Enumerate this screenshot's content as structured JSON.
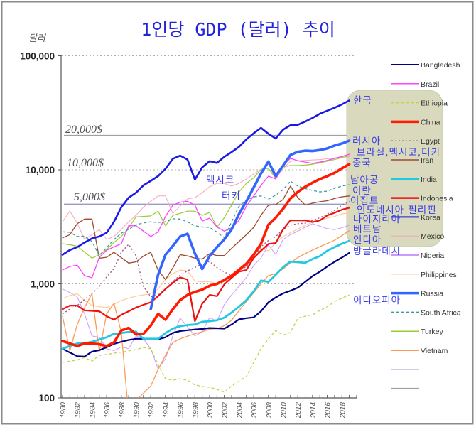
{
  "chart_data": {
    "type": "line",
    "title": "1인당 GDP (달러) 추이",
    "ylabel": "달러",
    "xlabel": "",
    "yscale": "log",
    "ylim": [
      100,
      100000
    ],
    "xlim": [
      1980,
      2019
    ],
    "grid": "dotted horizontal lines at 1,000 / 10,000 / 100,000",
    "legend_position": "right",
    "y_ticks": [
      {
        "value": 100000,
        "label": "100,000"
      },
      {
        "value": 10000,
        "label": "10,000"
      },
      {
        "value": 1000,
        "label": "1,000"
      },
      {
        "value": 100,
        "label": "100"
      }
    ],
    "x_tick_labels": [
      "1980",
      "1982",
      "1984",
      "1986",
      "1988",
      "1990",
      "1992",
      "1994",
      "1996",
      "1998",
      "2000",
      "2002",
      "2004",
      "2006",
      "2008",
      "2010",
      "2012",
      "2014",
      "2016",
      "2018"
    ],
    "x": [
      1980,
      1981,
      1982,
      1983,
      1984,
      1985,
      1986,
      1987,
      1988,
      1989,
      1990,
      1991,
      1992,
      1993,
      1994,
      1995,
      1996,
      1997,
      1998,
      1999,
      2000,
      2001,
      2002,
      2003,
      2004,
      2005,
      2006,
      2007,
      2008,
      2009,
      2010,
      2011,
      2012,
      2013,
      2014,
      2015,
      2016,
      2017,
      2018,
      2019
    ],
    "series": [
      {
        "name": "Bangladesh",
        "color": "#000080",
        "style": "solid",
        "values": [
          270,
          250,
          232,
          230,
          255,
          262,
          278,
          298,
          310,
          322,
          330,
          330,
          328,
          326,
          340,
          372,
          385,
          392,
          398,
          402,
          410,
          408,
          405,
          440,
          488,
          500,
          508,
          575,
          690,
          760,
          825,
          870,
          925,
          1040,
          1170,
          1280,
          1420,
          1560,
          1700,
          1870
        ]
      },
      {
        "name": "Brazil",
        "color": "#ff44ff",
        "style": "solid",
        "values": [
          1320,
          1420,
          1460,
          1180,
          1130,
          1710,
          1970,
          2110,
          2250,
          3230,
          3230,
          2900,
          2600,
          2850,
          3900,
          4900,
          5200,
          5300,
          4900,
          3550,
          3770,
          3150,
          2900,
          3100,
          3600,
          4800,
          5900,
          7300,
          8800,
          8300,
          11000,
          12600,
          12000,
          11700,
          11400,
          11700,
          12100,
          12600,
          13100,
          13700
        ]
      },
      {
        "name": "Ethiopia",
        "color": "#bbd64a",
        "style": "dashed",
        "values": [
          205,
          210,
          215,
          226,
          210,
          236,
          240,
          247,
          252,
          258,
          265,
          277,
          270,
          196,
          147,
          143,
          147,
          143,
          130,
          126,
          124,
          119,
          112,
          127,
          140,
          154,
          205,
          270,
          330,
          390,
          355,
          375,
          500,
          520,
          535,
          585,
          630,
          700,
          750,
          800
        ]
      },
      {
        "name": "China",
        "color": "#ff1a00",
        "style": "solid",
        "values": [
          315,
          300,
          285,
          300,
          300,
          295,
          285,
          306,
          390,
          410,
          360,
          365,
          430,
          545,
          485,
          600,
          720,
          800,
          850,
          890,
          960,
          1000,
          1080,
          1180,
          1330,
          1500,
          1800,
          2250,
          3300,
          3800,
          4550,
          5600,
          6400,
          7100,
          7700,
          8300,
          8800,
          9400,
          10300,
          11200
        ]
      },
      {
        "name": "Egypt",
        "color": "#a05a8c",
        "style": "dotted",
        "values": [
          545,
          600,
          645,
          730,
          820,
          950,
          1150,
          1360,
          1900,
          2220,
          1760,
          950,
          770,
          800,
          900,
          1050,
          1190,
          1300,
          1390,
          1500,
          1570,
          1390,
          1270,
          1190,
          1300,
          1420,
          1690,
          2120,
          2400,
          2600,
          3000,
          3270,
          3370,
          3400,
          3600,
          3800,
          4100,
          4400,
          4900,
          5300
        ]
      },
      {
        "name": "Iran",
        "color": "#9c4a30",
        "style": "solid",
        "values": [
          2530,
          2700,
          3370,
          3700,
          3700,
          1680,
          1710,
          1890,
          1700,
          1520,
          1560,
          1750,
          1890,
          1320,
          1090,
          1380,
          1800,
          1760,
          1680,
          1650,
          1840,
          1770,
          1770,
          2050,
          2350,
          2700,
          3130,
          4000,
          4900,
          4950,
          5500,
          7200,
          5700,
          4900,
          5100,
          5250,
          5360,
          5600,
          5800,
          5900
        ]
      },
      {
        "name": "India",
        "color": "#22c8e0",
        "style": "solid",
        "values": [
          270,
          285,
          300,
          302,
          310,
          325,
          340,
          365,
          370,
          378,
          380,
          330,
          330,
          330,
          370,
          405,
          425,
          435,
          440,
          465,
          470,
          480,
          505,
          560,
          630,
          720,
          860,
          1070,
          1040,
          1200,
          1400,
          1570,
          1550,
          1530,
          1650,
          1750,
          1950,
          2100,
          2250,
          2380
        ]
      },
      {
        "name": "Indonesia",
        "color": "#ee1111",
        "style": "solid",
        "values": [
          600,
          645,
          645,
          585,
          580,
          575,
          520,
          485,
          535,
          575,
          620,
          655,
          690,
          780,
          900,
          1020,
          1140,
          1090,
          470,
          670,
          800,
          780,
          990,
          1130,
          1280,
          1320,
          1690,
          1950,
          2240,
          2280,
          3000,
          3610,
          3600,
          3610,
          3480,
          3600,
          3980,
          4200,
          4470,
          4650
        ]
      },
      {
        "name": "Korea",
        "color": "#1a1ae6",
        "style": "solid",
        "values": [
          1800,
          1980,
          2100,
          2300,
          2500,
          2600,
          2800,
          3500,
          4700,
          5700,
          6300,
          7300,
          8000,
          8800,
          10200,
          12500,
          13300,
          12300,
          8200,
          10500,
          11900,
          11500,
          13000,
          14300,
          15900,
          18500,
          20900,
          23300,
          20700,
          18800,
          22500,
          24600,
          24800,
          26500,
          28500,
          31000,
          33000,
          35000,
          37500,
          40500
        ]
      },
      {
        "name": "Mexico",
        "color": "#f6a6bc",
        "style": "solid",
        "values": [
          3500,
          4360,
          3400,
          2450,
          2700,
          2990,
          2450,
          2600,
          3000,
          3500,
          4000,
          4700,
          5300,
          5900,
          5900,
          4140,
          4800,
          5550,
          5700,
          6300,
          7100,
          7600,
          7600,
          7200,
          7600,
          8300,
          9200,
          10100,
          10300,
          8300,
          10200,
          11900,
          12000,
          12100,
          12200,
          12300,
          12500,
          12700,
          12900,
          13000
        ]
      },
      {
        "name": "Nigeria",
        "color": "#cc99ff",
        "style": "solid",
        "values": [
          900,
          840,
          770,
          545,
          350,
          340,
          270,
          260,
          280,
          270,
          350,
          330,
          270,
          180,
          220,
          350,
          500,
          420,
          350,
          380,
          505,
          470,
          660,
          800,
          950,
          1140,
          1450,
          1690,
          2190,
          1810,
          2450,
          2700,
          2900,
          3130,
          3370,
          3200,
          3050,
          2990,
          3100,
          3270
        ]
      },
      {
        "name": "Philippines",
        "color": "#ffcc99",
        "style": "solid",
        "values": [
          745,
          790,
          820,
          715,
          645,
          630,
          620,
          660,
          715,
          750,
          780,
          800,
          820,
          900,
          1090,
          1230,
          1320,
          1300,
          1060,
          1040,
          1050,
          990,
          1050,
          1180,
          1300,
          1420,
          1650,
          2040,
          1950,
          2300,
          2600,
          2800,
          3030,
          3250,
          3480,
          3600,
          3770,
          3900,
          4100,
          4200
        ]
      },
      {
        "name": "Russia",
        "color": "#3366ff",
        "style": "solid",
        "values": [
          null,
          null,
          null,
          null,
          null,
          null,
          null,
          null,
          null,
          null,
          null,
          null,
          600,
          1200,
          1800,
          2150,
          2600,
          2750,
          1850,
          1350,
          1750,
          2100,
          2450,
          3000,
          4100,
          5300,
          7000,
          9300,
          11800,
          8800,
          10900,
          13500,
          14400,
          14700,
          14600,
          14900,
          15400,
          16300,
          17000,
          18000
        ]
      },
      {
        "name": "South Africa",
        "color": "#3a9c9c",
        "style": "dashed",
        "values": [
          2860,
          2830,
          2600,
          2620,
          2350,
          1770,
          2080,
          2450,
          2780,
          3000,
          3300,
          3420,
          3500,
          3450,
          3500,
          3720,
          3700,
          3500,
          3230,
          3150,
          3130,
          2840,
          2530,
          3500,
          4800,
          5400,
          5800,
          5900,
          5530,
          6000,
          6700,
          7950,
          7200,
          6850,
          6600,
          6400,
          6500,
          6900,
          7200,
          7400
        ]
      },
      {
        "name": "Turkey",
        "color": "#99cc33",
        "style": "solid",
        "values": [
          2250,
          2200,
          2140,
          1900,
          1680,
          1800,
          2000,
          2300,
          2600,
          3100,
          3870,
          3900,
          3940,
          4340,
          3230,
          3980,
          4150,
          4340,
          4340,
          3980,
          4220,
          3150,
          3800,
          4900,
          6400,
          7600,
          8500,
          10100,
          10300,
          8550,
          10600,
          10900,
          10900,
          11000,
          11200,
          11500,
          11900,
          12300,
          12800,
          13300
        ]
      },
      {
        "name": "Vietnam",
        "color": "#ff9955",
        "style": "solid",
        "values": [
          520,
          260,
          440,
          620,
          820,
          255,
          545,
          675,
          375,
          70,
          95,
          110,
          127,
          177,
          236,
          306,
          330,
          348,
          365,
          380,
          400,
          405,
          430,
          480,
          580,
          700,
          835,
          1000,
          1180,
          1230,
          1350,
          1530,
          1700,
          1840,
          1980,
          2120,
          2260,
          2410,
          2650,
          2920
        ]
      }
    ],
    "legend": [
      {
        "label": "Bangladesh",
        "color": "#000080",
        "style": "solid"
      },
      {
        "label": "Brazil",
        "color": "#ff44ff",
        "style": "solid"
      },
      {
        "label": "Ethiopia",
        "color": "#bbd64a",
        "style": "dashed"
      },
      {
        "label": "China",
        "color": "#ff1a00",
        "style": "solid"
      },
      {
        "label": "Egypt",
        "color": "#a05a8c",
        "style": "dotted"
      },
      {
        "label": "Iran",
        "color": "#9c4a30",
        "style": "solid"
      },
      {
        "label": "India",
        "color": "#22c8e0",
        "style": "solid"
      },
      {
        "label": "Indonesia",
        "color": "#ee1111",
        "style": "solid"
      },
      {
        "label": "Korea",
        "color": "#1a1ae6",
        "style": "solid"
      },
      {
        "label": "Mexico",
        "color": "#f6a6bc",
        "style": "solid"
      },
      {
        "label": "Nigeria",
        "color": "#cc99ff",
        "style": "solid"
      },
      {
        "label": "Philippines",
        "color": "#ffcc99",
        "style": "solid"
      },
      {
        "label": "Russia",
        "color": "#3366ff",
        "style": "solid"
      },
      {
        "label": "South Africa",
        "color": "#3a9c9c",
        "style": "dashed"
      },
      {
        "label": "Turkey",
        "color": "#99cc33",
        "style": "solid"
      },
      {
        "label": "Vietnam",
        "color": "#ff9955",
        "style": "solid"
      },
      {
        "label": "",
        "color": "#9999cc",
        "style": "solid"
      },
      {
        "label": "",
        "color": "#a0a0a0",
        "style": "solid"
      }
    ],
    "reference_lines": [
      {
        "value": 20000,
        "label": "20,000$",
        "color": "#a0a0a0",
        "style": "solid"
      },
      {
        "value": 10000,
        "label": "10,000$",
        "color": "#aaaaaa",
        "style": "dotted"
      },
      {
        "value": 5000,
        "label": "5,000$",
        "color": "#9999cc",
        "style": "solid"
      }
    ],
    "annotation_box_color": "#d9d9bd",
    "annotations": [
      {
        "text": "한국"
      },
      {
        "text": "러시아"
      },
      {
        "text": "브라질,멕시코,터키"
      },
      {
        "text": "중국"
      },
      {
        "text": "남아공"
      },
      {
        "text": "이란"
      },
      {
        "text": "이집트"
      },
      {
        "text": "인도네시아 필리핀"
      },
      {
        "text": "나이지리아"
      },
      {
        "text": "베트남"
      },
      {
        "text": "인디아"
      },
      {
        "text": "방글라데시"
      },
      {
        "text": "이디오피아"
      },
      {
        "text": "멕시코"
      },
      {
        "text": "터키"
      }
    ]
  }
}
